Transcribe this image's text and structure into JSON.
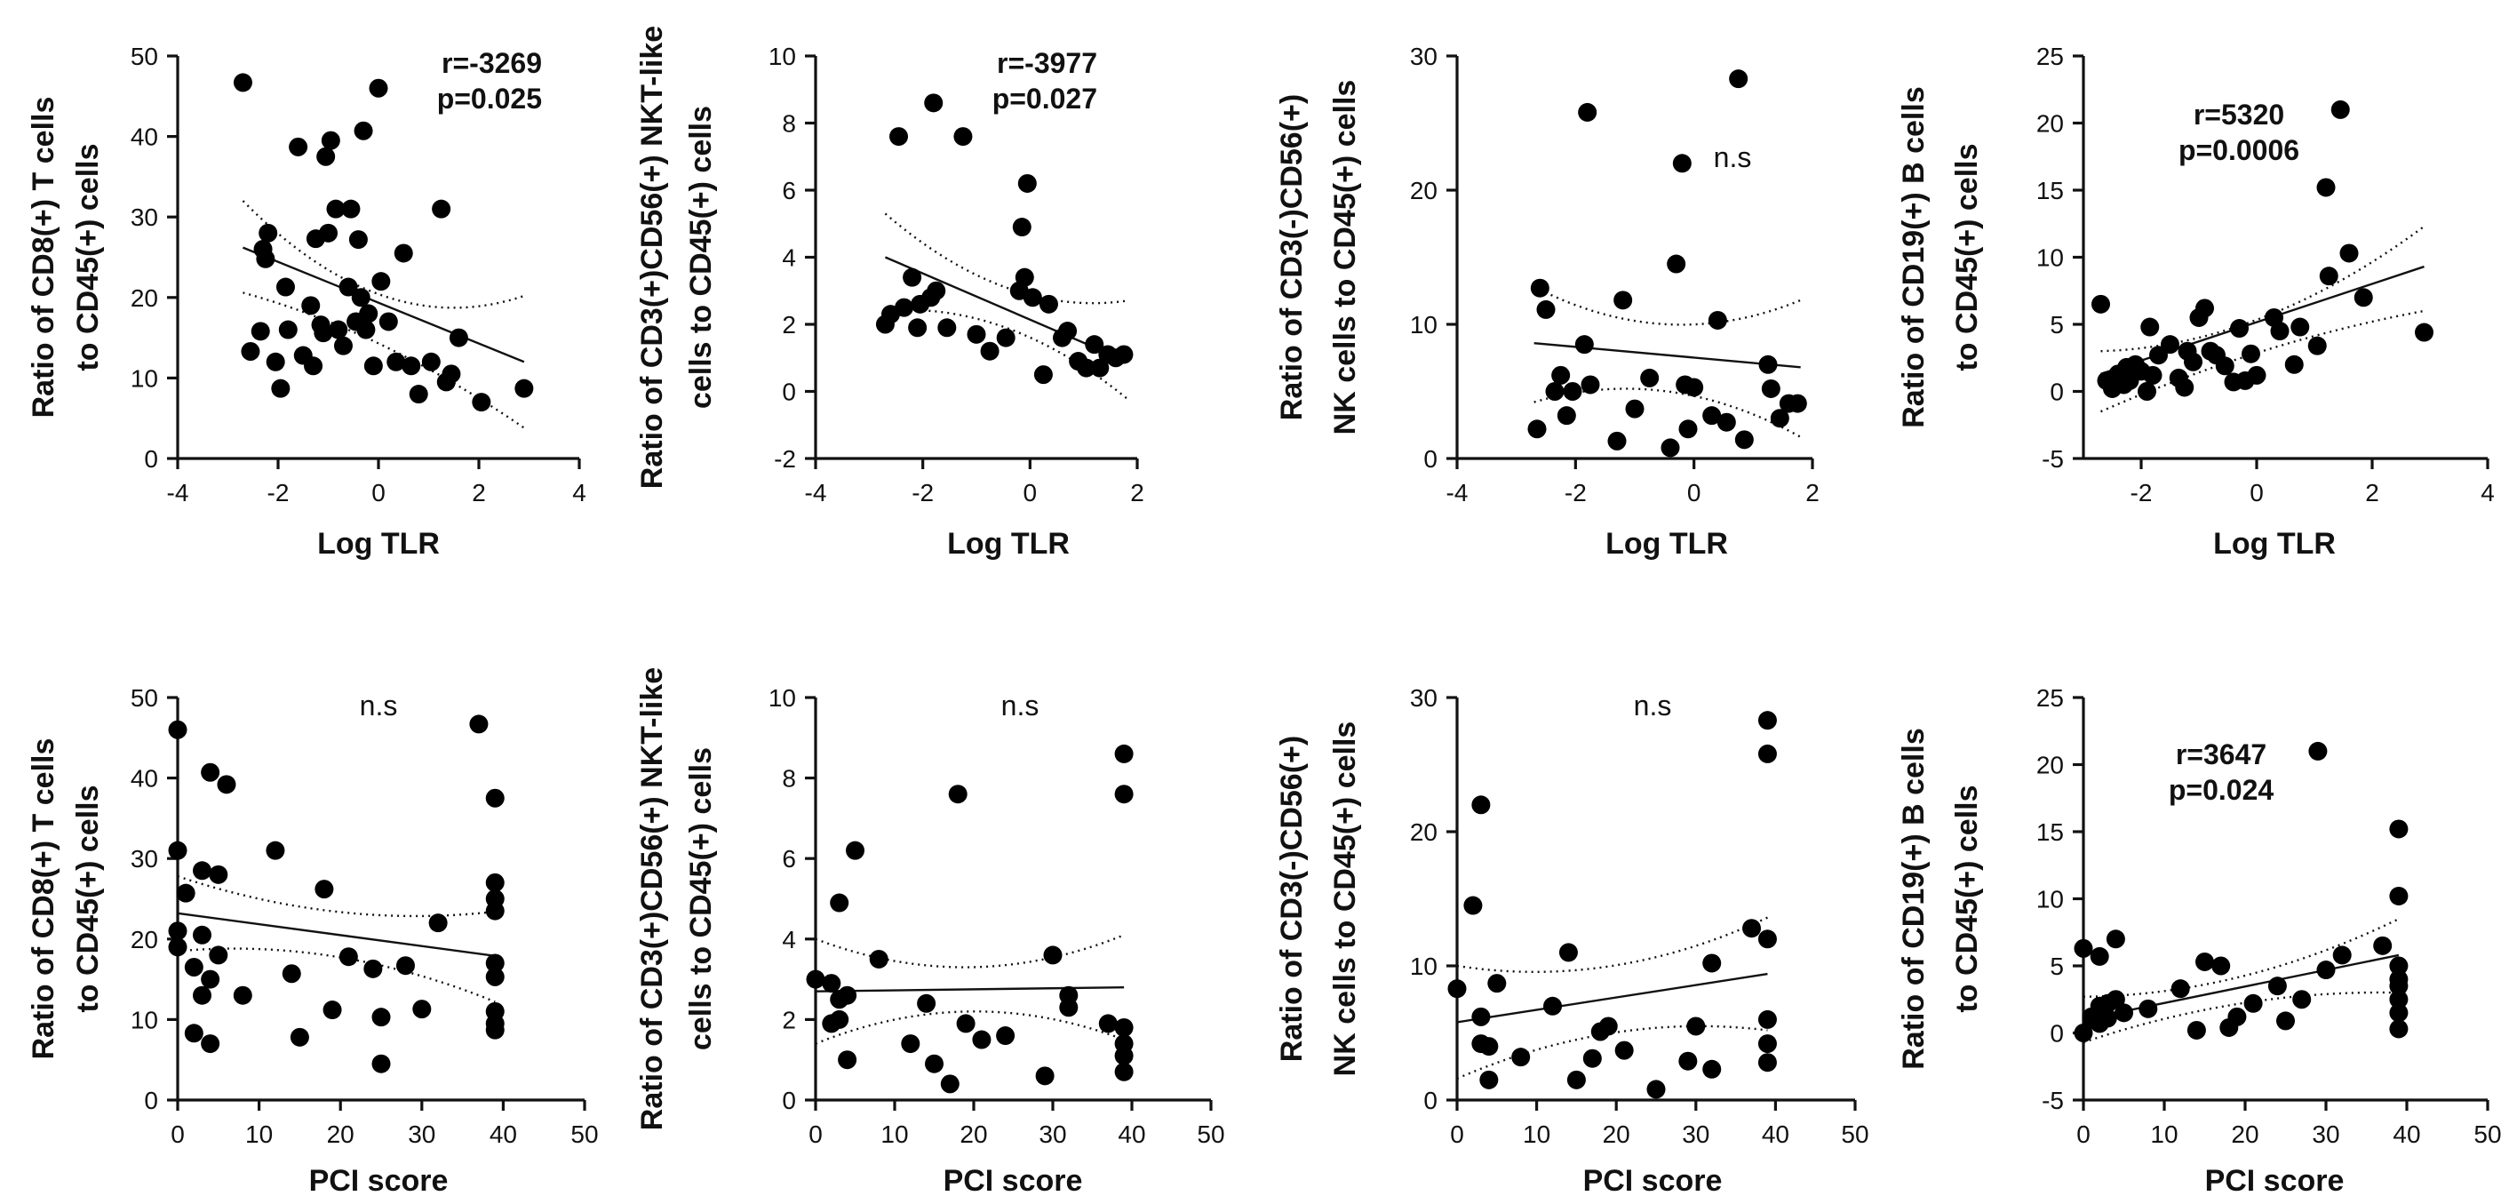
{
  "chart_data": [
    {
      "type": "scatter",
      "ylabel_lines": [
        "Ratio of CD8(+) T cells",
        "to CD45(+) cells"
      ],
      "xlabel": "Log TLR",
      "xlim": [
        -4,
        4
      ],
      "ylim": [
        0,
        50
      ],
      "xticks": [
        -4,
        -2,
        0,
        2,
        4
      ],
      "yticks": [
        0,
        10,
        20,
        30,
        40,
        50
      ],
      "stat_lines": [
        "r=-3269",
        "p=0.025"
      ],
      "fit": {
        "x": [
          -2.7,
          2.9
        ],
        "y": [
          26.2,
          12.0
        ],
        "ci_upper": [
          32.0,
          20.2
        ],
        "ci_lower": [
          20.6,
          3.8
        ],
        "ci_mid_upper": 20.2,
        "ci_mid_lower": 14.0
      },
      "x": [
        -2.7,
        -2.55,
        -2.35,
        -2.3,
        -2.25,
        -2.2,
        -2.05,
        -1.95,
        -1.85,
        -1.8,
        -1.6,
        -1.5,
        -1.35,
        -1.3,
        -1.25,
        -1.15,
        -1.1,
        -1.05,
        -1.0,
        -0.95,
        -0.85,
        -0.8,
        -0.7,
        -0.6,
        -0.55,
        -0.45,
        -0.4,
        -0.35,
        -0.3,
        -0.25,
        -0.2,
        -0.1,
        0.0,
        0.05,
        0.2,
        0.35,
        0.5,
        0.65,
        0.8,
        1.05,
        1.25,
        1.35,
        1.45,
        1.6,
        2.05,
        2.9
      ],
      "y": [
        46.7,
        13.3,
        15.8,
        26.0,
        24.8,
        28.0,
        12.0,
        8.7,
        21.3,
        16.0,
        38.7,
        12.8,
        19.0,
        11.5,
        27.3,
        16.6,
        15.6,
        37.5,
        28.0,
        39.5,
        31.0,
        16.0,
        14.0,
        21.3,
        31.0,
        17.0,
        27.2,
        20.0,
        40.7,
        16.0,
        18.0,
        11.5,
        46.0,
        22.0,
        17.0,
        12.0,
        25.5,
        11.5,
        8.0,
        12.0,
        31.0,
        9.5,
        10.5,
        15.0,
        7.0,
        8.7
      ]
    },
    {
      "type": "scatter",
      "ylabel_lines": [
        "Ratio of CD3(+)CD56(+) NKT-like",
        "cells to CD45(+) cells"
      ],
      "xlabel": "Log TLR",
      "xlim": [
        -4,
        2
      ],
      "ylim": [
        -2,
        10
      ],
      "xticks": [
        -4,
        -2,
        0,
        2
      ],
      "yticks": [
        -2,
        0,
        2,
        4,
        6,
        8,
        10
      ],
      "stat_lines": [
        "r=-3977",
        "p=0.027"
      ],
      "fit": {
        "x": [
          -2.7,
          1.8
        ],
        "y": [
          4.0,
          0.9
        ],
        "ci_upper": [
          5.3,
          2.7
        ],
        "ci_lower": [
          2.4,
          -0.2
        ],
        "ci_mid_upper": 3.1,
        "ci_mid_lower": 1.9
      },
      "x": [
        -2.7,
        -2.6,
        -2.45,
        -2.35,
        -2.2,
        -2.1,
        -2.05,
        -1.85,
        -1.8,
        -1.75,
        -1.55,
        -1.25,
        -1.0,
        -0.75,
        -0.45,
        -0.2,
        -0.15,
        -0.1,
        -0.05,
        0.05,
        0.25,
        0.35,
        0.6,
        0.7,
        0.9,
        1.05,
        1.2,
        1.3,
        1.45,
        1.6,
        1.75
      ],
      "y": [
        2.0,
        2.3,
        7.6,
        2.5,
        3.4,
        1.9,
        2.6,
        2.8,
        8.6,
        3.0,
        1.9,
        7.6,
        1.7,
        1.2,
        1.6,
        3.0,
        4.9,
        3.4,
        6.2,
        2.8,
        0.5,
        2.6,
        1.6,
        1.8,
        0.9,
        0.7,
        1.4,
        0.7,
        1.1,
        1.0,
        1.1
      ]
    },
    {
      "type": "scatter",
      "ylabel_lines": [
        "Ratio of CD3(-)CD56(+)",
        "NK cells to CD45(+) cells"
      ],
      "xlabel": "Log TLR",
      "xlim": [
        -4,
        2
      ],
      "ylim": [
        0,
        30
      ],
      "xticks": [
        -4,
        -2,
        0,
        2
      ],
      "yticks": [
        0,
        10,
        20,
        30
      ],
      "stat_lines": [
        "n.s"
      ],
      "fit": {
        "x": [
          -2.7,
          1.8
        ],
        "y": [
          8.6,
          6.8
        ],
        "ci_upper": [
          12.8,
          11.8
        ],
        "ci_lower": [
          4.2,
          1.6
        ],
        "ci_mid_upper": 10.0,
        "ci_mid_lower": 5.0
      },
      "x": [
        -2.65,
        -2.6,
        -2.5,
        -2.35,
        -2.25,
        -2.15,
        -2.05,
        -1.85,
        -1.8,
        -1.75,
        -1.3,
        -1.2,
        -1.0,
        -0.75,
        -0.4,
        -0.3,
        -0.2,
        -0.15,
        -0.1,
        0.0,
        0.3,
        0.4,
        0.55,
        0.75,
        0.85,
        1.25,
        1.3,
        1.45,
        1.6,
        1.75
      ],
      "y": [
        2.2,
        12.7,
        11.1,
        5.0,
        6.2,
        3.2,
        5.0,
        8.5,
        25.8,
        5.5,
        1.3,
        11.8,
        3.7,
        6.0,
        0.8,
        14.5,
        22.0,
        5.5,
        2.2,
        5.3,
        3.2,
        10.3,
        2.7,
        28.3,
        1.4,
        7.0,
        5.2,
        3.0,
        4.1,
        4.1
      ]
    },
    {
      "type": "scatter",
      "ylabel_lines": [
        "Ratio of CD19(+) B cells",
        "to CD45(+) cells"
      ],
      "xlabel": "Log TLR",
      "xlim": [
        -3,
        4
      ],
      "ylim": [
        -5,
        25
      ],
      "xticks": [
        -2,
        0,
        2,
        4
      ],
      "yticks": [
        -5,
        0,
        5,
        10,
        15,
        20,
        25
      ],
      "stat_lines": [
        "r=5320",
        "p=0.0006"
      ],
      "fit": {
        "x": [
          -2.7,
          2.9
        ],
        "y": [
          1.3,
          9.3
        ],
        "ci_upper": [
          3.0,
          12.3
        ],
        "ci_lower": [
          -1.5,
          6.0
        ],
        "ci_mid_upper": 5.5,
        "ci_mid_lower": 3.0
      },
      "x": [
        -2.7,
        -2.6,
        -2.5,
        -2.4,
        -2.3,
        -2.25,
        -2.2,
        -2.1,
        -2.0,
        -1.9,
        -1.85,
        -1.8,
        -1.7,
        -1.5,
        -1.35,
        -1.25,
        -1.2,
        -1.1,
        -1.0,
        -0.9,
        -0.8,
        -0.7,
        -0.55,
        -0.4,
        -0.3,
        -0.2,
        -0.1,
        0.0,
        0.3,
        0.4,
        0.65,
        0.75,
        1.05,
        1.2,
        1.25,
        1.45,
        1.6,
        1.85,
        2.9
      ],
      "y": [
        6.5,
        0.8,
        0.2,
        1.3,
        0.5,
        1.8,
        0.8,
        2.0,
        1.5,
        0.0,
        4.8,
        1.2,
        2.7,
        3.5,
        1.0,
        0.3,
        3.0,
        2.2,
        5.5,
        6.2,
        3.0,
        2.7,
        1.9,
        0.7,
        4.7,
        0.8,
        2.8,
        1.2,
        5.5,
        4.5,
        2.0,
        4.8,
        3.4,
        15.2,
        8.6,
        21.0,
        10.3,
        7.0,
        4.4
      ]
    },
    {
      "type": "scatter",
      "ylabel_lines": [
        "Ratio of CD8(+) T cells",
        "to CD45(+) cells"
      ],
      "xlabel": "PCI score",
      "xlim": [
        0,
        50
      ],
      "ylim": [
        0,
        50
      ],
      "xticks": [
        0,
        10,
        20,
        30,
        40,
        50
      ],
      "yticks": [
        0,
        10,
        20,
        30,
        40,
        50
      ],
      "stat_lines": [
        "n.s"
      ],
      "fit": {
        "x": [
          0,
          39
        ],
        "y": [
          23.2,
          17.9
        ],
        "ci_upper": [
          27.8,
          23.4
        ],
        "ci_lower": [
          18.5,
          12.2
        ],
        "ci_mid_upper": 23.4,
        "ci_mid_lower": 17.8
      },
      "x": [
        0,
        0,
        0,
        0,
        1,
        2,
        2,
        3,
        3,
        3,
        4,
        4,
        4,
        5,
        5,
        6,
        8,
        12,
        14,
        15,
        18,
        19,
        21,
        24,
        25,
        25,
        28,
        30,
        32,
        37,
        39,
        39,
        39,
        39,
        39,
        39,
        39,
        39,
        39
      ],
      "y": [
        46.0,
        31.0,
        21.0,
        19.0,
        25.7,
        16.5,
        8.3,
        13.0,
        20.5,
        28.5,
        40.7,
        15.0,
        7.0,
        28.0,
        18.0,
        39.2,
        13.0,
        31.0,
        15.7,
        7.8,
        26.2,
        11.2,
        17.8,
        16.3,
        10.3,
        4.5,
        16.7,
        11.3,
        22.0,
        46.7,
        37.5,
        27.0,
        25.0,
        23.5,
        17.0,
        15.3,
        11.0,
        9.5,
        8.7
      ]
    },
    {
      "type": "scatter",
      "ylabel_lines": [
        "Ratio of CD3(+)CD56(+) NKT-like",
        "cells to CD45(+) cells"
      ],
      "xlabel": "PCI score",
      "xlim": [
        0,
        50
      ],
      "ylim": [
        0,
        10
      ],
      "xticks": [
        0,
        10,
        20,
        30,
        40,
        50
      ],
      "yticks": [
        0,
        2,
        4,
        6,
        8,
        10
      ],
      "stat_lines": [
        "n.s"
      ],
      "fit": {
        "x": [
          0,
          39
        ],
        "y": [
          2.7,
          2.8
        ],
        "ci_upper": [
          4.0,
          4.1
        ],
        "ci_lower": [
          1.4,
          1.5
        ],
        "ci_mid_upper": 3.3,
        "ci_mid_lower": 2.2
      },
      "x": [
        0,
        2,
        2,
        3,
        3,
        3,
        4,
        4,
        5,
        8,
        12,
        14,
        15,
        17,
        18,
        19,
        21,
        24,
        29,
        30,
        32,
        32,
        37,
        39,
        39,
        39,
        39,
        39,
        39
      ],
      "y": [
        3.0,
        2.9,
        1.9,
        2.5,
        4.9,
        2.0,
        1.0,
        2.6,
        6.2,
        3.5,
        1.4,
        2.4,
        0.9,
        0.4,
        7.6,
        1.9,
        1.5,
        1.6,
        0.6,
        3.6,
        2.6,
        2.3,
        1.9,
        8.6,
        7.6,
        1.8,
        1.4,
        1.1,
        0.7
      ]
    },
    {
      "type": "scatter",
      "ylabel_lines": [
        "Ratio of CD3(-)CD56(+)",
        "NK cells to CD45(+) cells"
      ],
      "xlabel": "PCI score",
      "xlim": [
        0,
        50
      ],
      "ylim": [
        0,
        30
      ],
      "xticks": [
        0,
        10,
        20,
        30,
        40,
        50
      ],
      "yticks": [
        0,
        10,
        20,
        30
      ],
      "stat_lines": [
        "n.s"
      ],
      "fit": {
        "x": [
          0,
          39
        ],
        "y": [
          5.8,
          9.4
        ],
        "ci_upper": [
          10.0,
          13.6
        ],
        "ci_lower": [
          1.6,
          5.2
        ],
        "ci_mid_upper": 10.0,
        "ci_mid_lower": 5.0
      },
      "x": [
        0,
        2,
        3,
        3,
        3,
        4,
        4,
        5,
        8,
        12,
        14,
        15,
        17,
        18,
        19,
        21,
        25,
        29,
        30,
        32,
        32,
        37,
        39,
        39,
        39,
        39,
        39,
        39
      ],
      "y": [
        8.3,
        14.5,
        22.0,
        6.2,
        4.2,
        1.5,
        4.0,
        8.7,
        3.2,
        7.0,
        11.0,
        1.5,
        3.1,
        5.1,
        5.5,
        3.7,
        0.8,
        2.9,
        5.5,
        10.2,
        2.3,
        12.8,
        28.3,
        25.8,
        12.0,
        6.0,
        4.2,
        2.8
      ]
    },
    {
      "type": "scatter",
      "ylabel_lines": [
        "Ratio of CD19(+) B cells",
        "to CD45(+) cells"
      ],
      "xlabel": "PCI score",
      "xlim": [
        0,
        50
      ],
      "ylim": [
        -5,
        25
      ],
      "xticks": [
        0,
        10,
        20,
        30,
        40,
        50
      ],
      "yticks": [
        -5,
        0,
        5,
        10,
        15,
        20,
        25
      ],
      "stat_lines": [
        "r=3647",
        "p=0.024"
      ],
      "fit": {
        "x": [
          0,
          39
        ],
        "y": [
          1.0,
          5.8
        ],
        "ci_upper": [
          2.7,
          8.5
        ],
        "ci_lower": [
          -0.7,
          3.0
        ],
        "ci_mid_upper": 4.2,
        "ci_mid_lower": 2.2
      },
      "x": [
        0,
        0,
        1,
        1,
        2,
        2,
        2,
        3,
        3,
        4,
        4,
        5,
        8,
        12,
        14,
        15,
        17,
        18,
        19,
        21,
        24,
        25,
        27,
        29,
        30,
        32,
        37,
        39,
        39,
        39,
        39,
        39,
        39,
        39,
        39
      ],
      "y": [
        6.3,
        0.0,
        1.0,
        1.2,
        5.7,
        2.0,
        0.7,
        2.2,
        1.1,
        7.0,
        2.5,
        1.5,
        1.8,
        3.3,
        0.2,
        5.3,
        5.0,
        0.4,
        1.2,
        2.2,
        3.5,
        0.9,
        2.5,
        21.0,
        4.7,
        5.8,
        6.5,
        15.2,
        10.2,
        5.0,
        4.0,
        3.5,
        2.5,
        1.5,
        0.3
      ]
    }
  ]
}
